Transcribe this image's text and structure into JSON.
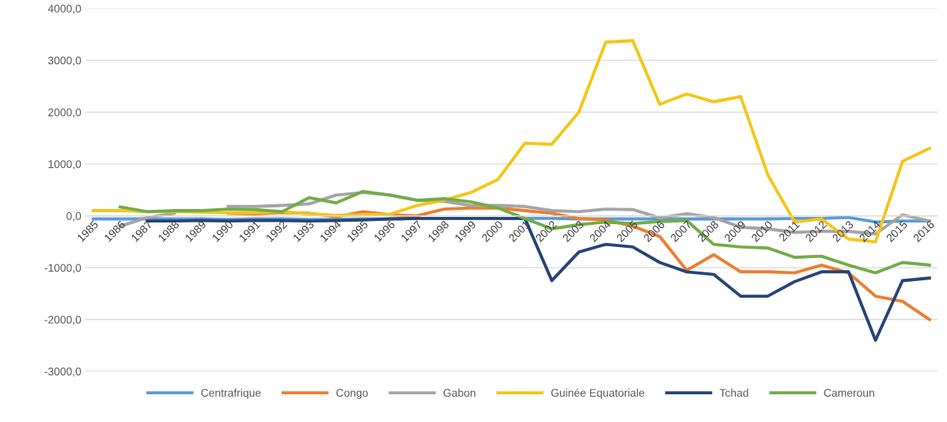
{
  "chart_data": {
    "type": "line",
    "categories": [
      "1985",
      "1986",
      "1987",
      "1988",
      "1989",
      "1990",
      "1991",
      "1992",
      "1993",
      "1994",
      "1995",
      "1996",
      "1997",
      "1998",
      "1999",
      "2000",
      "2001",
      "2002",
      "2003",
      "2004",
      "2005",
      "2006",
      "2007",
      "2008",
      "2009",
      "2010",
      "2011",
      "2012",
      "2013",
      "2014",
      "2015",
      "2016"
    ],
    "series": [
      {
        "name": "Centrafrique",
        "color": "#5b9bd5",
        "values": [
          -60,
          -60,
          -60,
          -60,
          -60,
          -70,
          -60,
          -60,
          -70,
          -70,
          -60,
          -60,
          -50,
          -50,
          -50,
          -50,
          -50,
          -50,
          -60,
          -60,
          -60,
          -60,
          -60,
          -60,
          -60,
          -60,
          -50,
          -50,
          -30,
          -120,
          -100,
          -100
        ]
      },
      {
        "name": "Congo",
        "color": "#ed7d31",
        "values": [
          null,
          null,
          null,
          null,
          null,
          50,
          40,
          60,
          50,
          -20,
          80,
          20,
          0,
          130,
          150,
          150,
          100,
          50,
          -50,
          -80,
          -200,
          -400,
          -1050,
          -750,
          -1080,
          -1080,
          -1100,
          -950,
          -1100,
          -1550,
          -1650,
          -2000
        ]
      },
      {
        "name": "Gabon",
        "color": "#a5a5a5",
        "values": [
          null,
          -200,
          -30,
          50,
          null,
          180,
          180,
          200,
          230,
          400,
          450,
          400,
          300,
          280,
          200,
          200,
          180,
          100,
          80,
          130,
          120,
          -40,
          40,
          -30,
          -220,
          -250,
          -320,
          -300,
          -300,
          -350,
          20,
          -100
        ]
      },
      {
        "name": "Guinée Equatoriale",
        "color": "#f5c518",
        "values": [
          100,
          100,
          80,
          80,
          70,
          60,
          60,
          80,
          40,
          10,
          20,
          30,
          200,
          300,
          450,
          700,
          1400,
          1380,
          2000,
          3350,
          3380,
          2150,
          2350,
          2200,
          2300,
          800,
          -120,
          -60,
          -450,
          -500,
          1050,
          1300
        ]
      },
      {
        "name": "Tchad",
        "color": "#264478",
        "values": [
          null,
          null,
          -100,
          -100,
          -90,
          -100,
          -90,
          -90,
          -100,
          -90,
          -80,
          -60,
          -50,
          -50,
          -50,
          -50,
          -50,
          -1250,
          -700,
          -550,
          -600,
          -900,
          -1080,
          -1130,
          -1550,
          -1550,
          -1270,
          -1080,
          -1080,
          -2400,
          -1250,
          -1200
        ]
      },
      {
        "name": "Cameroun",
        "color": "#70ad47",
        "values": [
          null,
          170,
          80,
          100,
          100,
          130,
          120,
          80,
          350,
          250,
          470,
          400,
          300,
          330,
          270,
          150,
          -50,
          -250,
          -170,
          -120,
          -150,
          -110,
          -90,
          -550,
          -600,
          -620,
          -800,
          -780,
          -950,
          -1100,
          -900,
          -950
        ]
      }
    ],
    "ylim": [
      -3000,
      4000
    ],
    "yticks": [
      {
        "value": -3000,
        "label": "-3000,0"
      },
      {
        "value": -2000,
        "label": "-2000,0"
      },
      {
        "value": -1000,
        "label": "-1000,0"
      },
      {
        "value": 0,
        "label": "0,0"
      },
      {
        "value": 1000,
        "label": "1000,0"
      },
      {
        "value": 2000,
        "label": "2000,0"
      },
      {
        "value": 3000,
        "label": "3000,0"
      },
      {
        "value": 4000,
        "label": "4000,0"
      }
    ],
    "grid": "y",
    "legend": "bottom",
    "marker": "none",
    "line_style": "solid"
  }
}
